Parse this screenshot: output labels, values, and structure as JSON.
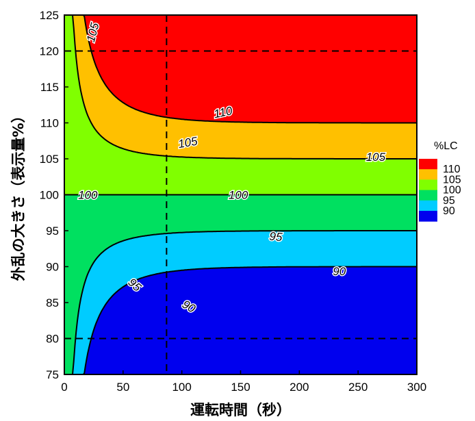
{
  "chart_data": {
    "type": "contour",
    "xlabel": "運転時間（秒）",
    "ylabel": "外乱の大きさ（表示量%）",
    "xlim": [
      0,
      300
    ],
    "ylim": [
      75,
      125
    ],
    "x_ticks": [
      "0",
      "50",
      "100",
      "150",
      "200",
      "250",
      "300"
    ],
    "y_ticks": [
      "75",
      "80",
      "85",
      "90",
      "95",
      "100",
      "105",
      "110",
      "115",
      "120",
      "125"
    ],
    "legend": {
      "title": "%LC",
      "entries": [
        {
          "label": "110",
          "color": "#ff0000"
        },
        {
          "label": "105",
          "color": "#ffc000"
        },
        {
          "label": "100",
          "color": "#80ff00"
        },
        {
          "label": "95",
          "color": "#00e060"
        },
        {
          "label": "90",
          "color": "#00ccff"
        },
        {
          "label": "",
          "color": "#0000ee"
        }
      ]
    },
    "contour_levels": [
      90,
      95,
      100,
      105,
      110
    ],
    "contour_labels": [
      {
        "text": "105",
        "x": 24,
        "y": 122.6,
        "rotate": 75
      },
      {
        "text": "110",
        "x": 135,
        "y": 111.5,
        "rotate": 12
      },
      {
        "text": "105",
        "x": 105,
        "y": 107.3,
        "rotate": 10
      },
      {
        "text": "105",
        "x": 265,
        "y": 105.3,
        "rotate": 0
      },
      {
        "text": "100",
        "x": 20,
        "y": 100,
        "rotate": 0
      },
      {
        "text": "100",
        "x": 148,
        "y": 100,
        "rotate": 0
      },
      {
        "text": "95",
        "x": 180,
        "y": 94.2,
        "rotate": -5
      },
      {
        "text": "95",
        "x": 60,
        "y": 87.5,
        "rotate": -42
      },
      {
        "text": "90",
        "x": 234,
        "y": 89.4,
        "rotate": 0
      },
      {
        "text": "90",
        "x": 106,
        "y": 84.5,
        "rotate": -30
      }
    ],
    "reference_lines": {
      "x": [
        87
      ],
      "y": [
        120,
        80
      ]
    }
  }
}
